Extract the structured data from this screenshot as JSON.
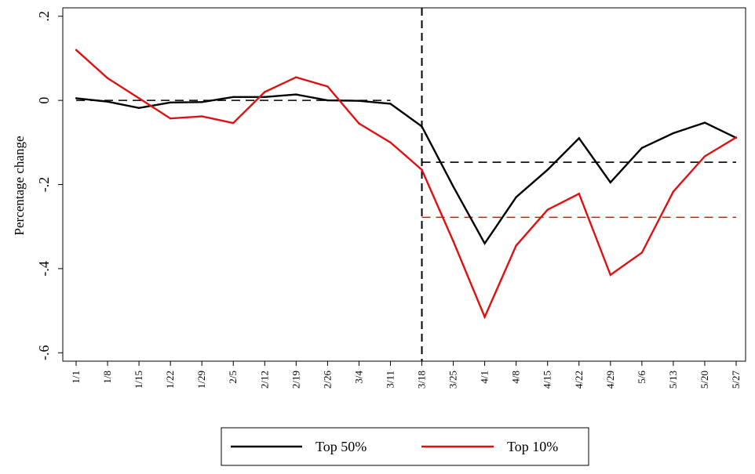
{
  "chart_data": {
    "type": "line",
    "title": "",
    "xlabel": "",
    "ylabel": "Percentage change",
    "categories": [
      "1/1",
      "1/8",
      "1/15",
      "1/22",
      "1/29",
      "2/5",
      "2/12",
      "2/19",
      "2/26",
      "3/4",
      "3/11",
      "3/18",
      "3/25",
      "4/1",
      "4/8",
      "4/15",
      "4/22",
      "4/29",
      "5/6",
      "5/13",
      "5/20",
      "5/27"
    ],
    "ylim": [
      -0.62,
      0.22
    ],
    "yticks": [
      0.2,
      0,
      -0.2,
      -0.4,
      -0.6
    ],
    "ytick_labels": [
      ".2",
      "0",
      "-.2",
      "-.4",
      "-.6"
    ],
    "grid": false,
    "legend_position": "bottom-center",
    "series": [
      {
        "name": "Top 50%",
        "color": "#000000",
        "values": [
          0.005,
          -0.003,
          -0.018,
          -0.005,
          -0.004,
          0.008,
          0.008,
          0.014,
          0.0,
          -0.001,
          -0.008,
          -0.062,
          -0.205,
          -0.34,
          -0.23,
          -0.165,
          -0.09,
          -0.195,
          -0.113,
          -0.078,
          -0.053,
          -0.089
        ]
      },
      {
        "name": "Top 10%",
        "color": "#dd1111",
        "values": [
          0.12,
          0.053,
          0.005,
          -0.043,
          -0.038,
          -0.054,
          0.02,
          0.055,
          0.033,
          -0.055,
          -0.1,
          -0.165,
          -0.335,
          -0.515,
          -0.345,
          -0.26,
          -0.222,
          -0.415,
          -0.362,
          -0.217,
          -0.133,
          -0.088
        ]
      }
    ],
    "reference_lines": [
      {
        "kind": "vertical",
        "at": "3/18",
        "color": "#000000",
        "dash": true
      },
      {
        "kind": "horizontal",
        "y": 0.0,
        "from": "1/1",
        "to": "3/11",
        "color": "#000000",
        "dash": true
      },
      {
        "kind": "horizontal",
        "y": -0.147,
        "from": "3/18",
        "to": "5/27",
        "color": "#000000",
        "dash": true
      },
      {
        "kind": "horizontal",
        "y": -0.278,
        "from": "3/18",
        "to": "5/27",
        "color": "#dd1111",
        "dash": true
      }
    ]
  }
}
